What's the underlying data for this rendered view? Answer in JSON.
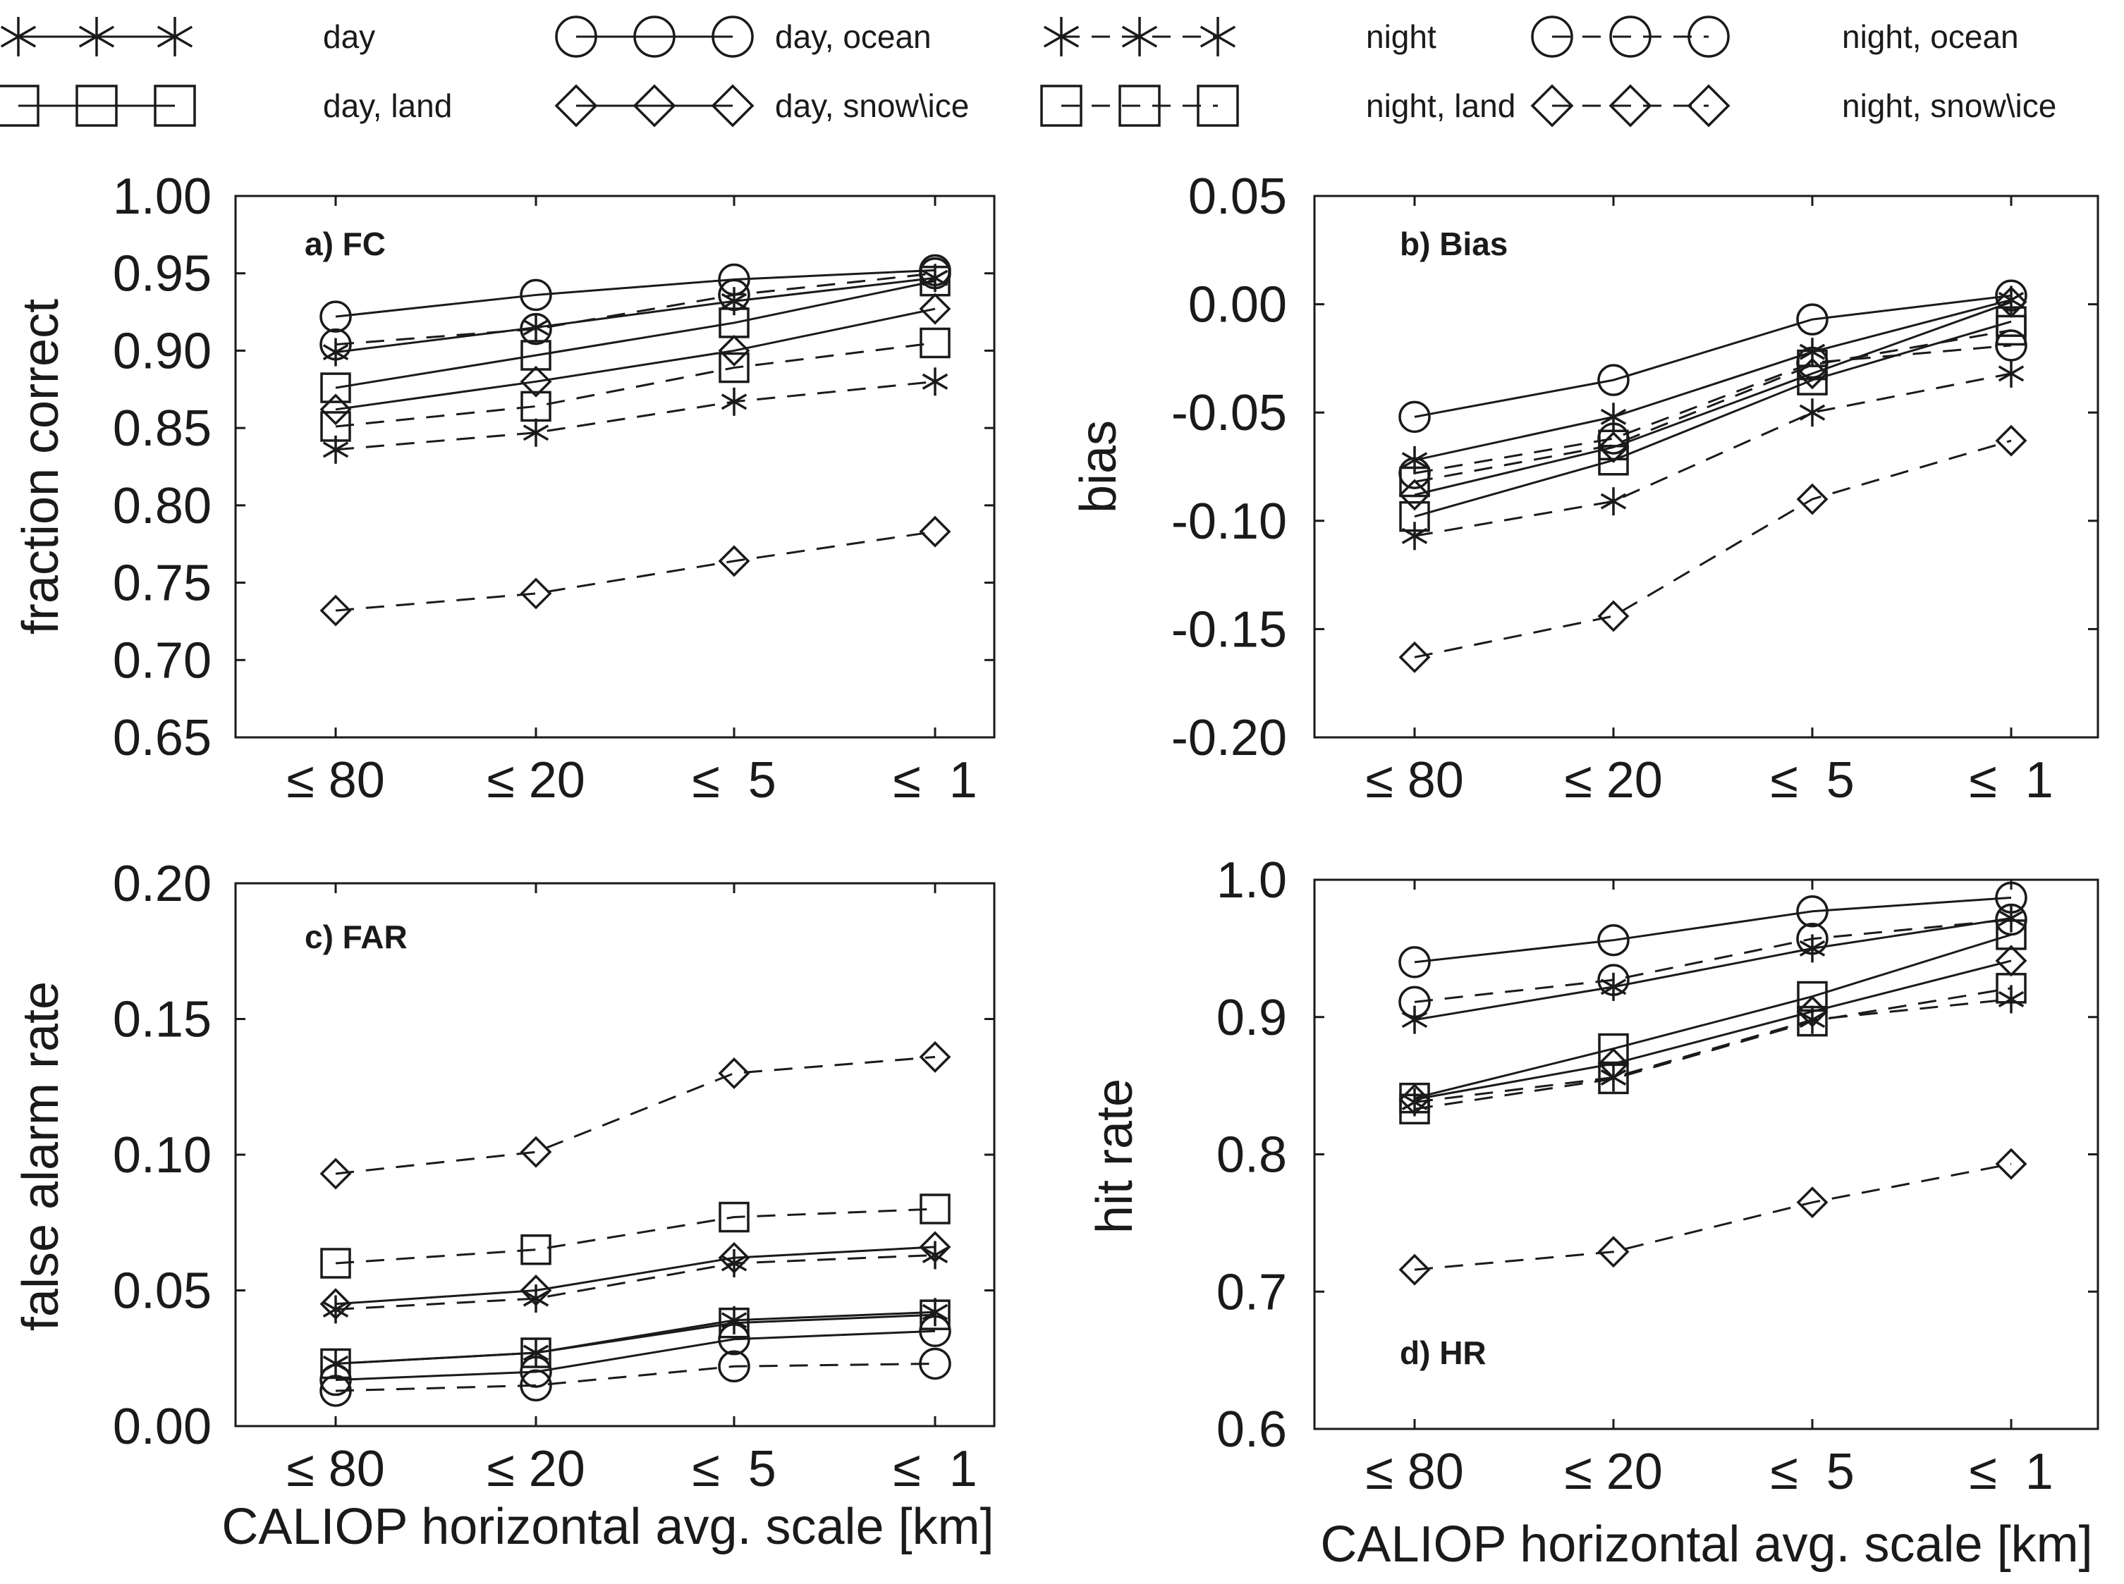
{
  "chart_data": {
    "type": "line",
    "x_axis_title": "CALIOP horizontal avg. scale [km]",
    "categories": [
      "≤ 80",
      "≤ 20",
      "≤  5",
      "≤  1"
    ],
    "legend": [
      {
        "name": "day",
        "marker": "star",
        "dash": "solid"
      },
      {
        "name": "day, ocean",
        "marker": "circle",
        "dash": "solid"
      },
      {
        "name": "night",
        "marker": "star",
        "dash": "dashed"
      },
      {
        "name": "night, ocean",
        "marker": "circle",
        "dash": "dashed"
      },
      {
        "name": "day, land",
        "marker": "square",
        "dash": "solid"
      },
      {
        "name": "day, snow\\ice",
        "marker": "diamond",
        "dash": "solid"
      },
      {
        "name": "night, land",
        "marker": "square",
        "dash": "dashed"
      },
      {
        "name": "night, snow\\ice",
        "marker": "diamond",
        "dash": "dashed"
      }
    ],
    "panels": [
      {
        "id": "fc",
        "label": "a) FC",
        "ylabel": "fraction correct",
        "ylim": [
          0.65,
          1.0
        ],
        "yticks": [
          0.65,
          0.7,
          0.75,
          0.8,
          0.85,
          0.9,
          0.95,
          1.0
        ],
        "ytick_labels": [
          "0.65",
          "0.70",
          "0.75",
          "0.80",
          "0.85",
          "0.90",
          "0.95",
          "1.00"
        ],
        "series": [
          {
            "name": "day",
            "marker": "star",
            "dash": "solid",
            "values": [
              0.899,
              0.915,
              0.932,
              0.947
            ]
          },
          {
            "name": "day, ocean",
            "marker": "circle",
            "dash": "solid",
            "values": [
              0.922,
              0.936,
              0.946,
              0.952
            ]
          },
          {
            "name": "day, land",
            "marker": "square",
            "dash": "solid",
            "values": [
              0.876,
              0.897,
              0.918,
              0.945
            ]
          },
          {
            "name": "day, snow\\ice",
            "marker": "diamond",
            "dash": "solid",
            "values": [
              0.862,
              0.88,
              0.9,
              0.927
            ]
          },
          {
            "name": "night",
            "marker": "star",
            "dash": "dashed",
            "values": [
              0.836,
              0.847,
              0.867,
              0.88
            ]
          },
          {
            "name": "night, ocean",
            "marker": "circle",
            "dash": "dashed",
            "values": [
              0.904,
              0.914,
              0.936,
              0.95
            ]
          },
          {
            "name": "night, land",
            "marker": "square",
            "dash": "dashed",
            "values": [
              0.851,
              0.864,
              0.889,
              0.905
            ]
          },
          {
            "name": "night, snow\\ice",
            "marker": "diamond",
            "dash": "dashed",
            "values": [
              0.732,
              0.743,
              0.764,
              0.783
            ]
          }
        ]
      },
      {
        "id": "bias",
        "label": "b) Bias",
        "ylabel": "bias",
        "ylim": [
          -0.2,
          0.05
        ],
        "yticks": [
          -0.2,
          -0.15,
          -0.1,
          -0.05,
          0.0,
          0.05
        ],
        "ytick_labels": [
          "-0.20",
          "-0.15",
          "-0.10",
          "-0.05",
          "0.00",
          "0.05"
        ],
        "series": [
          {
            "name": "day",
            "marker": "star",
            "dash": "solid",
            "values": [
              -0.072,
              -0.052,
              -0.022,
              0.002
            ]
          },
          {
            "name": "day, ocean",
            "marker": "circle",
            "dash": "solid",
            "values": [
              -0.052,
              -0.035,
              -0.007,
              0.004
            ]
          },
          {
            "name": "day, land",
            "marker": "square",
            "dash": "solid",
            "values": [
              -0.098,
              -0.072,
              -0.035,
              -0.008
            ]
          },
          {
            "name": "day, snow\\ice",
            "marker": "diamond",
            "dash": "solid",
            "values": [
              -0.088,
              -0.066,
              -0.032,
              0.001
            ]
          },
          {
            "name": "night",
            "marker": "star",
            "dash": "dashed",
            "values": [
              -0.107,
              -0.091,
              -0.05,
              -0.032
            ]
          },
          {
            "name": "night, ocean",
            "marker": "circle",
            "dash": "dashed",
            "values": [
              -0.078,
              -0.062,
              -0.027,
              -0.019
            ]
          },
          {
            "name": "night, land",
            "marker": "square",
            "dash": "dashed",
            "values": [
              -0.082,
              -0.065,
              -0.028,
              -0.012
            ]
          },
          {
            "name": "night, snow\\ice",
            "marker": "diamond",
            "dash": "dashed",
            "values": [
              -0.163,
              -0.144,
              -0.09,
              -0.063
            ]
          }
        ]
      },
      {
        "id": "far",
        "label": "c) FAR",
        "ylabel": "false alarm rate",
        "ylim": [
          0.0,
          0.2
        ],
        "yticks": [
          0.0,
          0.05,
          0.1,
          0.15,
          0.2
        ],
        "ytick_labels": [
          "0.00",
          "0.05",
          "0.10",
          "0.15",
          "0.20"
        ],
        "series": [
          {
            "name": "day",
            "marker": "star",
            "dash": "solid",
            "values": [
              0.023,
              0.027,
              0.039,
              0.042
            ]
          },
          {
            "name": "day, ocean",
            "marker": "circle",
            "dash": "solid",
            "values": [
              0.017,
              0.02,
              0.032,
              0.035
            ]
          },
          {
            "name": "day, land",
            "marker": "square",
            "dash": "solid",
            "values": [
              0.023,
              0.027,
              0.038,
              0.041
            ]
          },
          {
            "name": "day, snow\\ice",
            "marker": "diamond",
            "dash": "solid",
            "values": [
              0.045,
              0.05,
              0.062,
              0.066
            ]
          },
          {
            "name": "night",
            "marker": "star",
            "dash": "dashed",
            "values": [
              0.043,
              0.047,
              0.06,
              0.063
            ]
          },
          {
            "name": "night, ocean",
            "marker": "circle",
            "dash": "dashed",
            "values": [
              0.013,
              0.015,
              0.022,
              0.023
            ]
          },
          {
            "name": "night, land",
            "marker": "square",
            "dash": "dashed",
            "values": [
              0.06,
              0.065,
              0.077,
              0.08
            ]
          },
          {
            "name": "night, snow\\ice",
            "marker": "diamond",
            "dash": "dashed",
            "values": [
              0.093,
              0.101,
              0.13,
              0.136
            ]
          }
        ]
      },
      {
        "id": "hr",
        "label": "d) HR",
        "ylabel": "hit rate",
        "ylim": [
          0.6,
          1.0
        ],
        "yticks": [
          0.6,
          0.7,
          0.8,
          0.9,
          1.0
        ],
        "ytick_labels": [
          "0.6",
          "0.7",
          "0.8",
          "0.9",
          "1.0"
        ],
        "series": [
          {
            "name": "day",
            "marker": "star",
            "dash": "solid",
            "values": [
              0.898,
              0.922,
              0.95,
              0.972
            ]
          },
          {
            "name": "day, ocean",
            "marker": "circle",
            "dash": "solid",
            "values": [
              0.94,
              0.956,
              0.977,
              0.987
            ]
          },
          {
            "name": "day, land",
            "marker": "square",
            "dash": "solid",
            "values": [
              0.841,
              0.877,
              0.915,
              0.96
            ]
          },
          {
            "name": "day, snow\\ice",
            "marker": "diamond",
            "dash": "solid",
            "values": [
              0.84,
              0.866,
              0.904,
              0.941
            ]
          },
          {
            "name": "night",
            "marker": "star",
            "dash": "dashed",
            "values": [
              0.838,
              0.856,
              0.898,
              0.913
            ]
          },
          {
            "name": "night, ocean",
            "marker": "circle",
            "dash": "dashed",
            "values": [
              0.911,
              0.927,
              0.957,
              0.971
            ]
          },
          {
            "name": "night, land",
            "marker": "square",
            "dash": "dashed",
            "values": [
              0.833,
              0.855,
              0.897,
              0.921
            ]
          },
          {
            "name": "night, snow\\ice",
            "marker": "diamond",
            "dash": "dashed",
            "values": [
              0.716,
              0.729,
              0.765,
              0.793
            ]
          }
        ]
      }
    ]
  }
}
